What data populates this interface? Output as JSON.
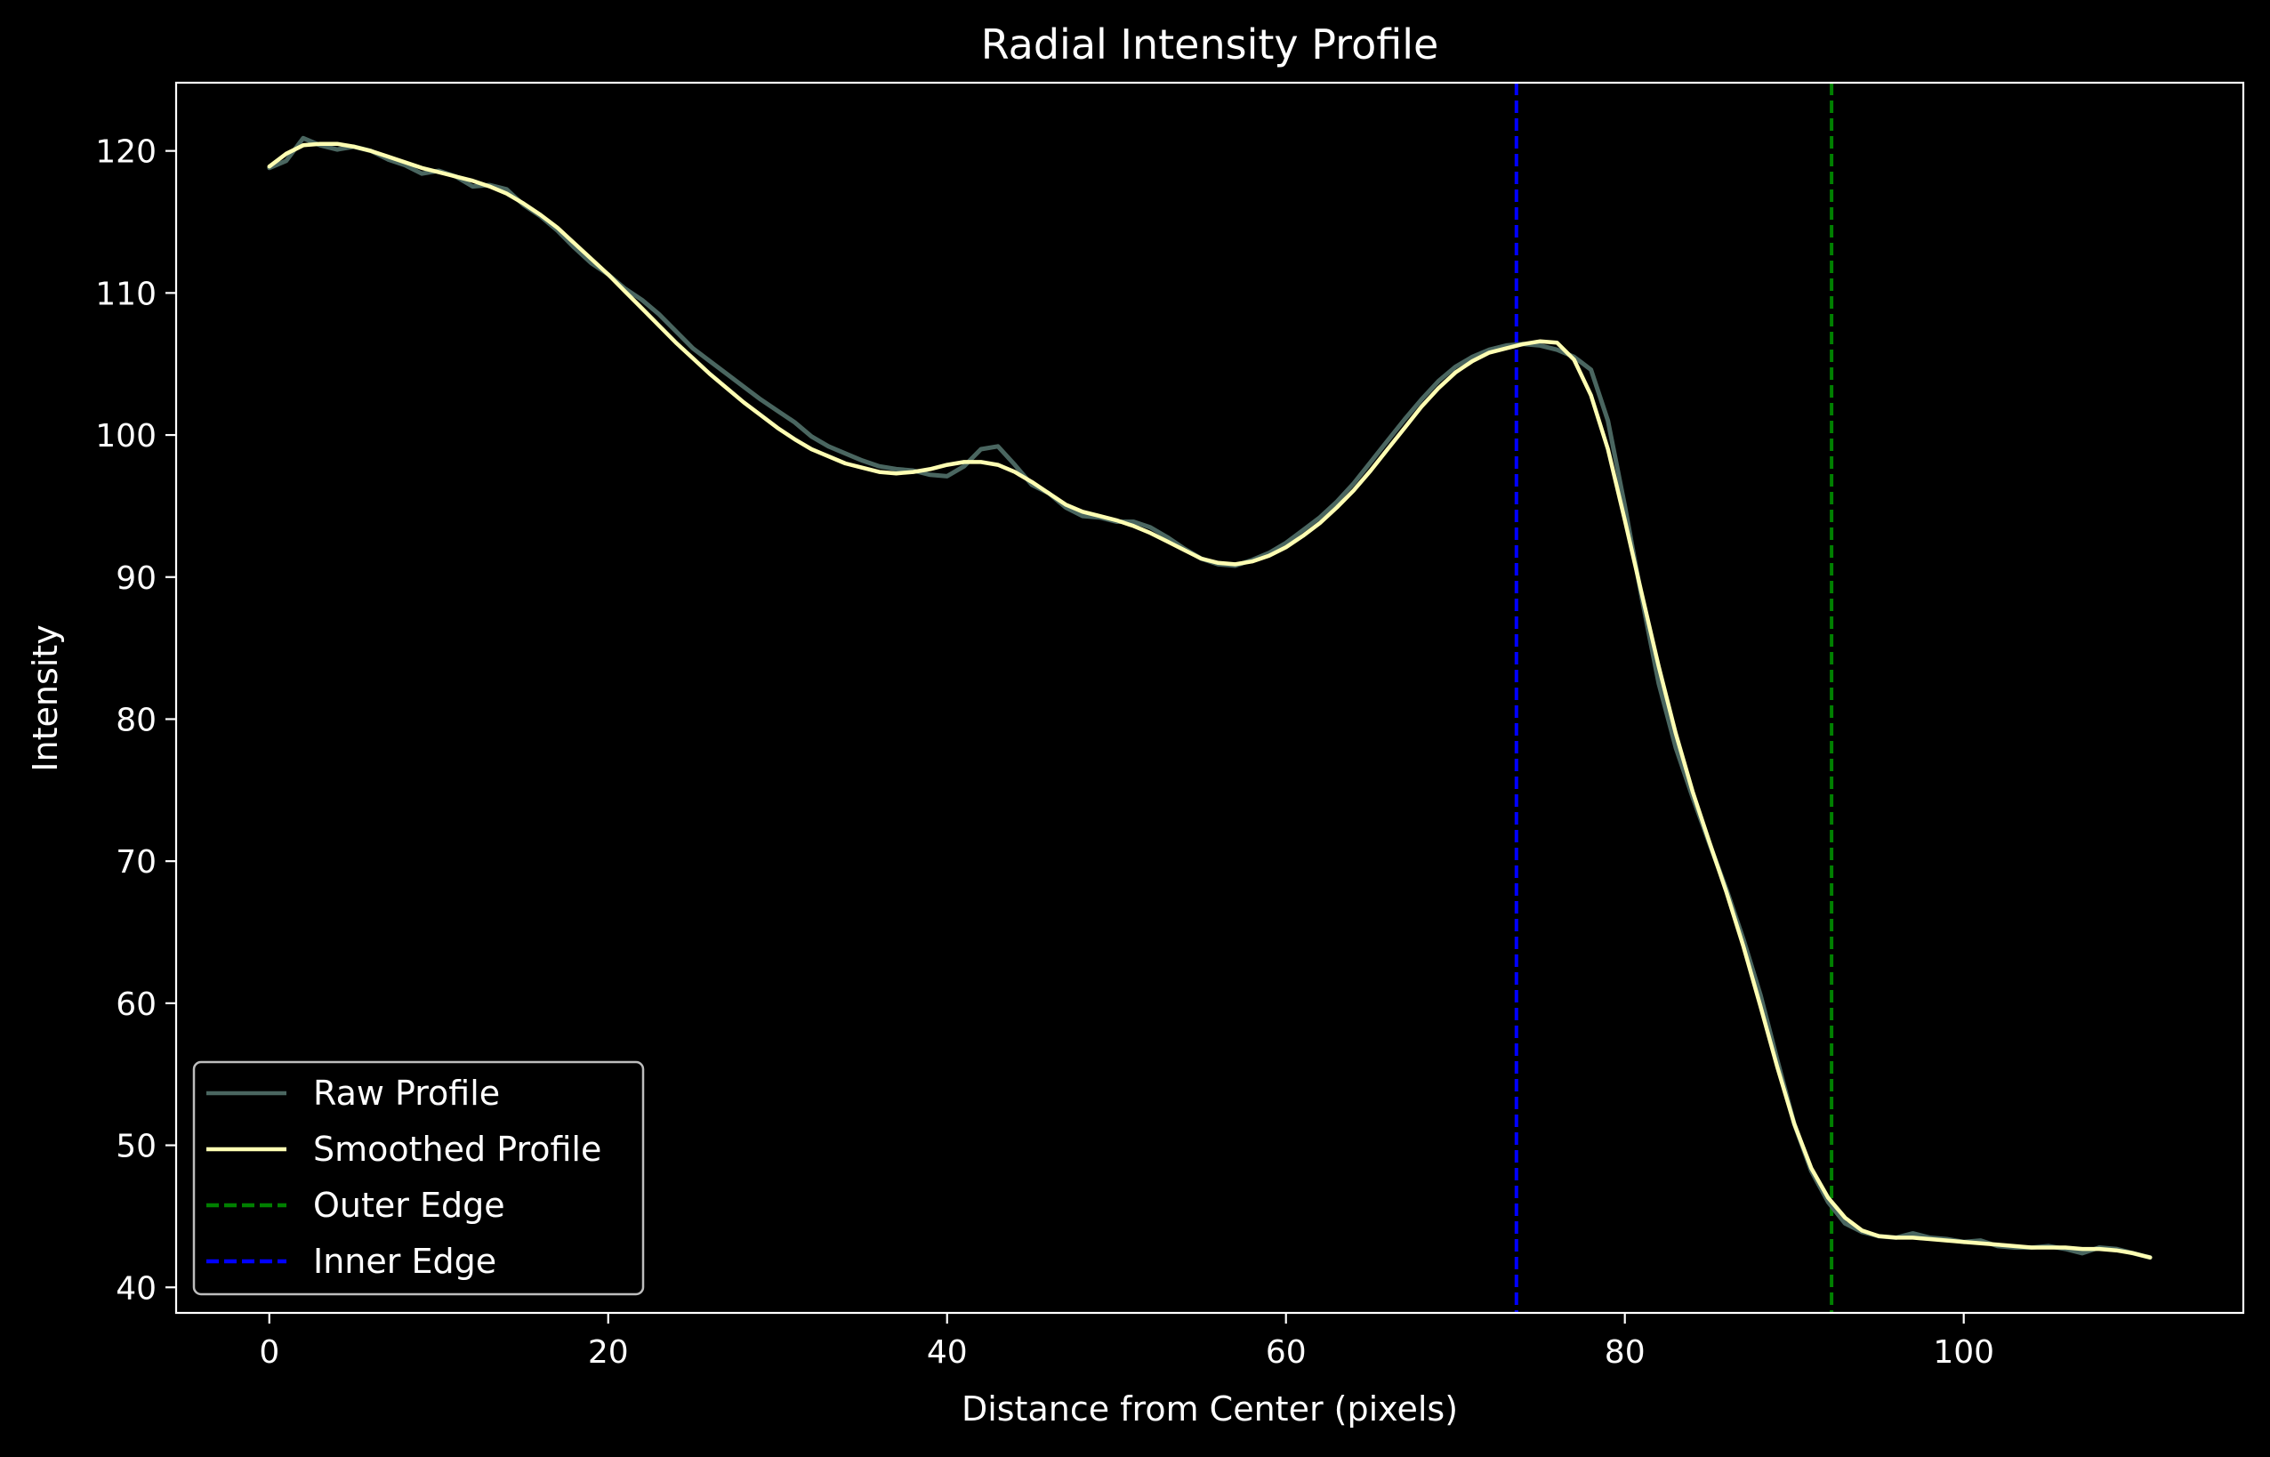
{
  "chart_data": {
    "type": "line",
    "title": "Radial Intensity Profile",
    "xlabel": "Distance from Center (pixels)",
    "ylabel": "Intensity",
    "xlim": [
      -5.5,
      116.5
    ],
    "ylim": [
      38.2,
      124.8
    ],
    "xticks": [
      0,
      20,
      40,
      60,
      80,
      100
    ],
    "yticks": [
      40,
      50,
      60,
      70,
      80,
      90,
      100,
      110,
      120
    ],
    "grid": false,
    "legend_position": "lower-left",
    "colors": {
      "background": "#000000",
      "axes": "#ffffff",
      "text": "#ffffff",
      "raw": "#4a6660",
      "smoothed": "#ffffb3",
      "outer_edge": "#008000",
      "inner_edge": "#0000ff"
    },
    "series": [
      {
        "name": "Raw Profile",
        "style": "solid",
        "color": "#4a6660",
        "points": [
          [
            0,
            118.8
          ],
          [
            1,
            119.3
          ],
          [
            2,
            120.9
          ],
          [
            3,
            120.4
          ],
          [
            4,
            120.1
          ],
          [
            5,
            120.3
          ],
          [
            6,
            120.0
          ],
          [
            7,
            119.4
          ],
          [
            8,
            119.0
          ],
          [
            9,
            118.4
          ],
          [
            10,
            118.6
          ],
          [
            11,
            118.2
          ],
          [
            12,
            117.5
          ],
          [
            13,
            117.6
          ],
          [
            14,
            117.3
          ],
          [
            15,
            116.2
          ],
          [
            16,
            115.4
          ],
          [
            17,
            114.4
          ],
          [
            18,
            113.2
          ],
          [
            19,
            112.1
          ],
          [
            20,
            111.3
          ],
          [
            21,
            110.3
          ],
          [
            22,
            109.5
          ],
          [
            23,
            108.5
          ],
          [
            24,
            107.3
          ],
          [
            25,
            106.1
          ],
          [
            26,
            105.2
          ],
          [
            27,
            104.3
          ],
          [
            28,
            103.4
          ],
          [
            29,
            102.5
          ],
          [
            30,
            101.7
          ],
          [
            31,
            100.9
          ],
          [
            32,
            99.9
          ],
          [
            33,
            99.2
          ],
          [
            34,
            98.7
          ],
          [
            35,
            98.2
          ],
          [
            36,
            97.8
          ],
          [
            37,
            97.6
          ],
          [
            38,
            97.5
          ],
          [
            39,
            97.2
          ],
          [
            40,
            97.1
          ],
          [
            41,
            97.8
          ],
          [
            42,
            99.0
          ],
          [
            43,
            99.2
          ],
          [
            44,
            97.9
          ],
          [
            45,
            96.5
          ],
          [
            46,
            95.9
          ],
          [
            47,
            94.9
          ],
          [
            48,
            94.3
          ],
          [
            49,
            94.2
          ],
          [
            50,
            93.9
          ],
          [
            51,
            93.9
          ],
          [
            52,
            93.5
          ],
          [
            53,
            92.8
          ],
          [
            54,
            92.0
          ],
          [
            55,
            91.3
          ],
          [
            56,
            90.9
          ],
          [
            57,
            90.8
          ],
          [
            58,
            91.2
          ],
          [
            59,
            91.7
          ],
          [
            60,
            92.4
          ],
          [
            61,
            93.3
          ],
          [
            62,
            94.2
          ],
          [
            63,
            95.3
          ],
          [
            64,
            96.6
          ],
          [
            65,
            98.1
          ],
          [
            66,
            99.6
          ],
          [
            67,
            101.1
          ],
          [
            68,
            102.5
          ],
          [
            69,
            103.8
          ],
          [
            70,
            104.8
          ],
          [
            71,
            105.5
          ],
          [
            72,
            106.0
          ],
          [
            73,
            106.3
          ],
          [
            74,
            106.4
          ],
          [
            75,
            106.3
          ],
          [
            76,
            106.0
          ],
          [
            77,
            105.5
          ],
          [
            78,
            104.6
          ],
          [
            79,
            101.0
          ],
          [
            80,
            95.0
          ],
          [
            81,
            88.5
          ],
          [
            82,
            82.5
          ],
          [
            83,
            78.0
          ],
          [
            84,
            74.5
          ],
          [
            85,
            71.2
          ],
          [
            86,
            68.0
          ],
          [
            87,
            64.5
          ],
          [
            88,
            60.6
          ],
          [
            89,
            56.0
          ],
          [
            90,
            51.5
          ],
          [
            91,
            48.2
          ],
          [
            92,
            46.0
          ],
          [
            93,
            44.5
          ],
          [
            94,
            43.9
          ],
          [
            95,
            43.6
          ],
          [
            96,
            43.5
          ],
          [
            97,
            43.8
          ],
          [
            98,
            43.5
          ],
          [
            99,
            43.4
          ],
          [
            100,
            43.2
          ],
          [
            101,
            43.3
          ],
          [
            102,
            42.9
          ],
          [
            103,
            42.8
          ],
          [
            104,
            42.8
          ],
          [
            105,
            42.9
          ],
          [
            106,
            42.7
          ],
          [
            107,
            42.4
          ],
          [
            108,
            42.8
          ],
          [
            109,
            42.7
          ],
          [
            110,
            42.4
          ],
          [
            111,
            42.1
          ]
        ]
      },
      {
        "name": "Smoothed Profile",
        "style": "solid",
        "color": "#ffffb3",
        "points": [
          [
            0,
            118.9
          ],
          [
            1,
            119.8
          ],
          [
            2,
            120.4
          ],
          [
            3,
            120.5
          ],
          [
            4,
            120.5
          ],
          [
            5,
            120.3
          ],
          [
            6,
            120.0
          ],
          [
            7,
            119.6
          ],
          [
            8,
            119.2
          ],
          [
            9,
            118.8
          ],
          [
            10,
            118.5
          ],
          [
            11,
            118.2
          ],
          [
            12,
            117.9
          ],
          [
            13,
            117.5
          ],
          [
            14,
            117.0
          ],
          [
            15,
            116.3
          ],
          [
            16,
            115.5
          ],
          [
            17,
            114.6
          ],
          [
            18,
            113.5
          ],
          [
            19,
            112.4
          ],
          [
            20,
            111.3
          ],
          [
            21,
            110.1
          ],
          [
            22,
            108.9
          ],
          [
            23,
            107.7
          ],
          [
            24,
            106.5
          ],
          [
            25,
            105.4
          ],
          [
            26,
            104.3
          ],
          [
            27,
            103.3
          ],
          [
            28,
            102.3
          ],
          [
            29,
            101.4
          ],
          [
            30,
            100.5
          ],
          [
            31,
            99.7
          ],
          [
            32,
            99.0
          ],
          [
            33,
            98.5
          ],
          [
            34,
            98.0
          ],
          [
            35,
            97.7
          ],
          [
            36,
            97.4
          ],
          [
            37,
            97.3
          ],
          [
            38,
            97.4
          ],
          [
            39,
            97.6
          ],
          [
            40,
            97.9
          ],
          [
            41,
            98.1
          ],
          [
            42,
            98.1
          ],
          [
            43,
            97.9
          ],
          [
            44,
            97.4
          ],
          [
            45,
            96.7
          ],
          [
            46,
            95.9
          ],
          [
            47,
            95.1
          ],
          [
            48,
            94.6
          ],
          [
            49,
            94.3
          ],
          [
            50,
            94.0
          ],
          [
            51,
            93.6
          ],
          [
            52,
            93.1
          ],
          [
            53,
            92.5
          ],
          [
            54,
            91.9
          ],
          [
            55,
            91.3
          ],
          [
            56,
            91.0
          ],
          [
            57,
            90.9
          ],
          [
            58,
            91.1
          ],
          [
            59,
            91.5
          ],
          [
            60,
            92.1
          ],
          [
            61,
            92.9
          ],
          [
            62,
            93.8
          ],
          [
            63,
            94.9
          ],
          [
            64,
            96.1
          ],
          [
            65,
            97.5
          ],
          [
            66,
            99.0
          ],
          [
            67,
            100.5
          ],
          [
            68,
            102.0
          ],
          [
            69,
            103.3
          ],
          [
            70,
            104.4
          ],
          [
            71,
            105.2
          ],
          [
            72,
            105.8
          ],
          [
            73,
            106.1
          ],
          [
            74,
            106.4
          ],
          [
            75,
            106.6
          ],
          [
            76,
            106.5
          ],
          [
            77,
            105.3
          ],
          [
            78,
            102.8
          ],
          [
            79,
            99.0
          ],
          [
            80,
            94.0
          ],
          [
            81,
            88.8
          ],
          [
            82,
            83.7
          ],
          [
            83,
            79.0
          ],
          [
            84,
            74.9
          ],
          [
            85,
            71.3
          ],
          [
            86,
            67.8
          ],
          [
            87,
            64.0
          ],
          [
            88,
            59.8
          ],
          [
            89,
            55.5
          ],
          [
            90,
            51.5
          ],
          [
            91,
            48.4
          ],
          [
            92,
            46.3
          ],
          [
            93,
            44.9
          ],
          [
            94,
            44.0
          ],
          [
            95,
            43.6
          ],
          [
            96,
            43.5
          ],
          [
            97,
            43.5
          ],
          [
            98,
            43.4
          ],
          [
            99,
            43.3
          ],
          [
            100,
            43.2
          ],
          [
            101,
            43.1
          ],
          [
            102,
            43.0
          ],
          [
            103,
            42.9
          ],
          [
            104,
            42.8
          ],
          [
            105,
            42.8
          ],
          [
            106,
            42.8
          ],
          [
            107,
            42.7
          ],
          [
            108,
            42.7
          ],
          [
            109,
            42.6
          ],
          [
            110,
            42.4
          ],
          [
            111,
            42.1
          ]
        ]
      }
    ],
    "vlines": [
      {
        "name": "Outer Edge",
        "x": 92.2,
        "style": "dashed",
        "color": "#008000"
      },
      {
        "name": "Inner Edge",
        "x": 73.6,
        "style": "dashed",
        "color": "#0000ff"
      }
    ]
  }
}
